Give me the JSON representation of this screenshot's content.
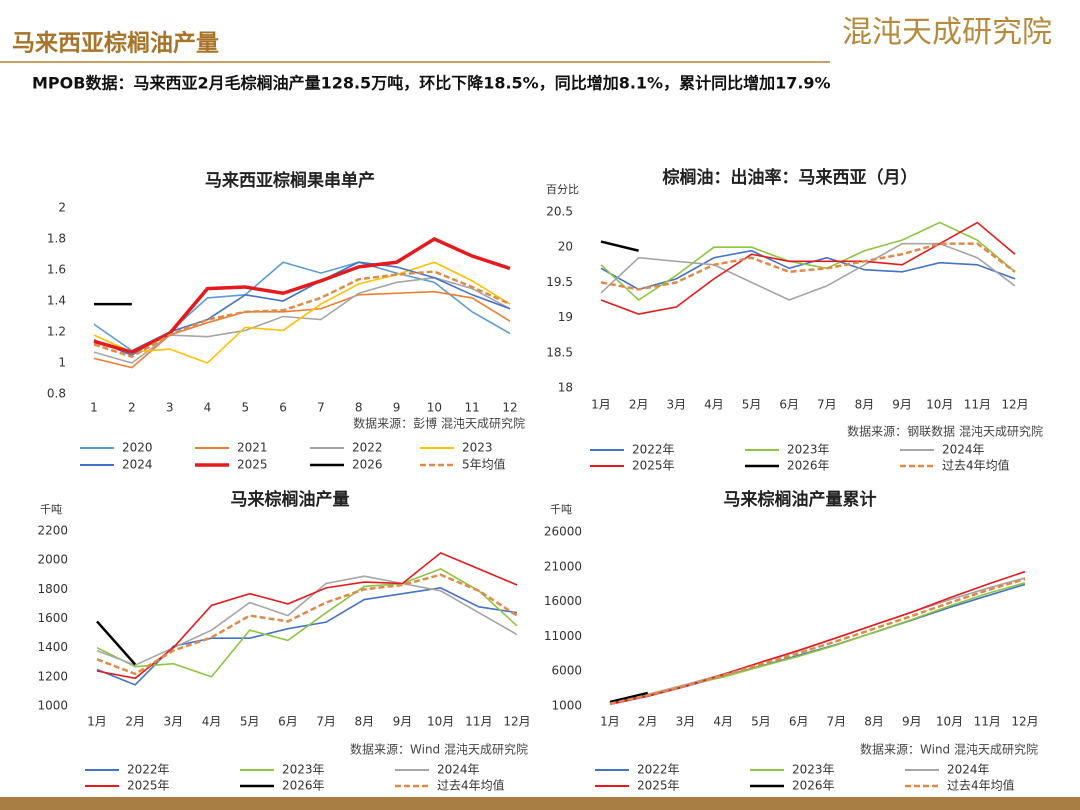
{
  "header": {
    "title": "马来西亚棕榈油产量",
    "logo": "混沌天成研究院",
    "summary": "MPOB数据：马来西亚2月毛棕榈油产量128.5万吨，环比下降18.5%，同比增加8.1%，累计同比增加17.9%"
  },
  "chart_data": [
    {
      "type": "line",
      "title": "马来西亚棕榈果串单产",
      "source": "数据来源：彭博  混沌天成研究院",
      "categories": [
        "1",
        "2",
        "3",
        "4",
        "5",
        "6",
        "7",
        "8",
        "9",
        "10",
        "11",
        "12"
      ],
      "ylim": [
        0.8,
        2
      ],
      "yticks": [
        0.8,
        1,
        1.2,
        1.4,
        1.6,
        1.8,
        2
      ],
      "series": [
        {
          "name": "2020",
          "color": "#5b9bd5",
          "values": [
            1.25,
            1.08,
            1.2,
            1.42,
            1.44,
            1.65,
            1.58,
            1.65,
            1.58,
            1.52,
            1.33,
            1.19
          ]
        },
        {
          "name": "2021",
          "color": "#ed7d31",
          "values": [
            1.03,
            0.97,
            1.18,
            1.26,
            1.33,
            1.33,
            1.35,
            1.44,
            1.45,
            1.46,
            1.42,
            1.27
          ]
        },
        {
          "name": "2022",
          "color": "#a5a5a5",
          "values": [
            1.07,
            1.0,
            1.18,
            1.17,
            1.21,
            1.3,
            1.28,
            1.45,
            1.52,
            1.55,
            1.48,
            1.35
          ]
        },
        {
          "name": "2023",
          "color": "#ffc000",
          "values": [
            1.18,
            1.07,
            1.09,
            1.0,
            1.23,
            1.21,
            1.38,
            1.51,
            1.57,
            1.65,
            1.53,
            1.38
          ]
        },
        {
          "name": "2024",
          "color": "#4472c4",
          "values": [
            1.15,
            1.05,
            1.2,
            1.28,
            1.44,
            1.4,
            1.53,
            1.65,
            1.62,
            1.55,
            1.44,
            1.35
          ]
        },
        {
          "name": "2025",
          "color": "#e41a1c",
          "line_width": 3.5,
          "values": [
            1.14,
            1.07,
            1.19,
            1.48,
            1.49,
            1.45,
            1.53,
            1.62,
            1.65,
            1.8,
            1.69,
            1.61
          ]
        },
        {
          "name": "2026",
          "color": "#000000",
          "line_width": 2.5,
          "values": [
            1.38,
            1.38,
            null,
            null,
            null,
            null,
            null,
            null,
            null,
            null,
            null,
            null
          ]
        },
        {
          "name": "5年均值",
          "color": "#e08a4a",
          "dashed": true,
          "values": [
            1.12,
            1.04,
            1.18,
            1.28,
            1.33,
            1.34,
            1.42,
            1.54,
            1.57,
            1.59,
            1.49,
            1.38
          ]
        }
      ]
    },
    {
      "type": "line",
      "title": "棕榈油：出油率：马来西亚（月）",
      "ylabel": "百分比",
      "source": "数据来源：钢联数据  混沌天成研究院",
      "categories": [
        "1月",
        "2月",
        "3月",
        "4月",
        "5月",
        "6月",
        "7月",
        "8月",
        "9月",
        "10月",
        "11月",
        "12月"
      ],
      "ylim": [
        18,
        20.5
      ],
      "yticks": [
        18,
        18.5,
        19,
        19.5,
        20,
        20.5
      ],
      "series": [
        {
          "name": "2022年",
          "color": "#4472c4",
          "values": [
            19.7,
            19.4,
            19.55,
            19.85,
            19.95,
            19.7,
            19.85,
            19.68,
            19.65,
            19.78,
            19.75,
            19.55
          ]
        },
        {
          "name": "2023年",
          "color": "#8cc63f",
          "values": [
            19.75,
            19.25,
            19.6,
            20.0,
            20.0,
            19.8,
            19.7,
            19.95,
            20.1,
            20.35,
            20.1,
            19.65
          ]
        },
        {
          "name": "2024年",
          "color": "#a5a5a5",
          "values": [
            19.35,
            19.85,
            19.8,
            19.75,
            19.5,
            19.25,
            19.45,
            19.75,
            20.05,
            20.05,
            19.85,
            19.45
          ]
        },
        {
          "name": "2025年",
          "color": "#e41a1c",
          "values": [
            19.25,
            19.05,
            19.15,
            19.55,
            19.9,
            19.8,
            19.8,
            19.8,
            19.75,
            20.05,
            20.35,
            19.9
          ]
        },
        {
          "name": "2026年",
          "color": "#000000",
          "line_width": 2.5,
          "values": [
            20.08,
            19.95,
            null,
            null,
            null,
            null,
            null,
            null,
            null,
            null,
            null,
            null
          ]
        },
        {
          "name": "过去4年均值",
          "color": "#e08a4a",
          "dashed": true,
          "values": [
            19.5,
            19.4,
            19.5,
            19.75,
            19.85,
            19.65,
            19.7,
            19.8,
            19.9,
            20.05,
            20.05,
            19.65
          ]
        }
      ]
    },
    {
      "type": "line",
      "title": "马来棕榈油产量",
      "ylabel": "千吨",
      "source": "数据来源：Wind  混沌天成研究院",
      "categories": [
        "1月",
        "2月",
        "3月",
        "4月",
        "5月",
        "6月",
        "7月",
        "8月",
        "9月",
        "10月",
        "11月",
        "12月"
      ],
      "ylim": [
        1000,
        2200
      ],
      "yticks": [
        1000,
        1200,
        1400,
        1600,
        1800,
        2000,
        2200
      ],
      "series": [
        {
          "name": "2022年",
          "color": "#4472c4",
          "values": [
            1250,
            1145,
            1410,
            1465,
            1465,
            1530,
            1575,
            1730,
            1770,
            1810,
            1680,
            1640
          ]
        },
        {
          "name": "2023年",
          "color": "#8cc63f",
          "values": [
            1400,
            1270,
            1290,
            1200,
            1520,
            1450,
            1640,
            1820,
            1840,
            1940,
            1790,
            1550
          ]
        },
        {
          "name": "2024年",
          "color": "#a5a5a5",
          "values": [
            1380,
            1280,
            1400,
            1520,
            1710,
            1620,
            1840,
            1890,
            1840,
            1790,
            1640,
            1490
          ]
        },
        {
          "name": "2025年",
          "color": "#e41a1c",
          "values": [
            1240,
            1190,
            1400,
            1690,
            1770,
            1700,
            1810,
            1850,
            1840,
            2050,
            1940,
            1830
          ]
        },
        {
          "name": "2026年",
          "color": "#000000",
          "line_width": 2.5,
          "values": [
            1580,
            1285,
            null,
            null,
            null,
            null,
            null,
            null,
            null,
            null,
            null,
            null
          ]
        },
        {
          "name": "过去4年均值",
          "color": "#e08a4a",
          "dashed": true,
          "values": [
            1320,
            1220,
            1380,
            1470,
            1620,
            1580,
            1710,
            1800,
            1830,
            1900,
            1790,
            1620
          ]
        }
      ]
    },
    {
      "type": "line",
      "title": "马来棕榈油产量累计",
      "ylabel": "千吨",
      "source": "数据来源：Wind  混沌天成研究院",
      "categories": [
        "1月",
        "2月",
        "3月",
        "4月",
        "5月",
        "6月",
        "7月",
        "8月",
        "9月",
        "10月",
        "11月",
        "12月"
      ],
      "ylim": [
        1000,
        26000
      ],
      "yticks": [
        1000,
        6000,
        11000,
        16000,
        21000,
        26000
      ],
      "series": [
        {
          "name": "2022年",
          "color": "#4472c4",
          "values": [
            1250,
            2395,
            3805,
            5270,
            6735,
            8265,
            9840,
            11570,
            13340,
            15150,
            16830,
            18470
          ]
        },
        {
          "name": "2023年",
          "color": "#8cc63f",
          "values": [
            1400,
            2670,
            3960,
            5160,
            6680,
            8130,
            9770,
            11590,
            13430,
            15370,
            17160,
            18710
          ]
        },
        {
          "name": "2024年",
          "color": "#a5a5a5",
          "values": [
            1380,
            2660,
            4060,
            5580,
            7290,
            8910,
            10750,
            12640,
            14480,
            16270,
            17910,
            19400
          ]
        },
        {
          "name": "2025年",
          "color": "#e41a1c",
          "values": [
            1240,
            2430,
            3830,
            5520,
            7290,
            8990,
            10800,
            12650,
            14490,
            16540,
            18480,
            20310
          ]
        },
        {
          "name": "2026年",
          "color": "#000000",
          "line_width": 2.5,
          "values": [
            1580,
            2865,
            null,
            null,
            null,
            null,
            null,
            null,
            null,
            null,
            null,
            null
          ]
        },
        {
          "name": "过去4年均值",
          "color": "#e08a4a",
          "dashed": true,
          "values": [
            1320,
            2540,
            3920,
            5390,
            7010,
            8590,
            10300,
            12100,
            13930,
            15830,
            17620,
            19240
          ]
        }
      ]
    }
  ]
}
